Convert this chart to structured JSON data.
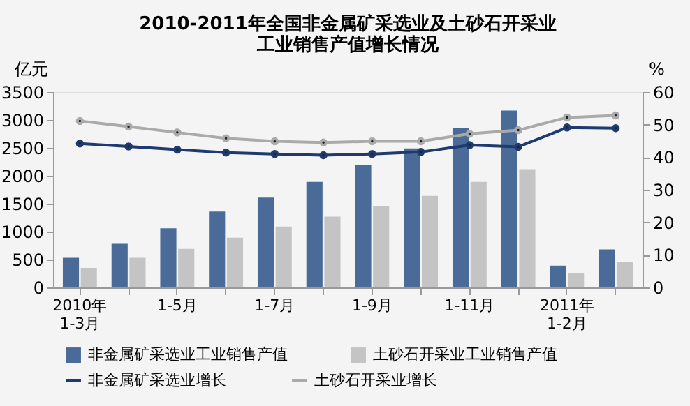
{
  "chart_data": {
    "type": "bar",
    "title": "2010-2011年全国非金属矿采选业及土砂石开采业工业销售产值增长情况",
    "ylabel": "亿元",
    "y2label": "%",
    "categories": [
      "2010年\n1-3月",
      null,
      "1-5月",
      null,
      "1-7月",
      null,
      "1-9月",
      null,
      "1-11月",
      null,
      "2011年\n1-2月",
      null
    ],
    "series": [
      {
        "name": "非金属矿采选业工业销售产值",
        "color": "#4a6a98",
        "values": [
          530,
          780,
          1060,
          1360,
          1610,
          1890,
          2190,
          2490,
          2850,
          3170,
          390,
          680
        ]
      },
      {
        "name": "土砂石开采业工业销售产值",
        "color": "#c4c4c4",
        "values": [
          350,
          530,
          690,
          890,
          1090,
          1270,
          1460,
          1640,
          1890,
          2120,
          250,
          450
        ]
      },
      {
        "name": "非金属矿采选业增长",
        "type": "line",
        "axis": "y2",
        "color": "#1f3a6e",
        "values": [
          44.2,
          43.3,
          42.3,
          41.4,
          41.0,
          40.6,
          41.0,
          41.6,
          43.7,
          43.2,
          49.1,
          48.9
        ]
      },
      {
        "name": "土砂石开采业增长",
        "type": "line",
        "axis": "y2",
        "color": "#aaaaaa",
        "values": [
          51.1,
          49.4,
          47.6,
          45.8,
          44.9,
          44.5,
          44.9,
          44.9,
          47.2,
          48.3,
          52.2,
          52.8
        ]
      }
    ],
    "ylim": [
      0,
      3500
    ],
    "yticks": [
      0,
      500,
      1000,
      1500,
      2000,
      2500,
      3000,
      3500
    ],
    "y2lim": [
      0,
      60
    ],
    "y2ticks": [
      0,
      10,
      20,
      30,
      40,
      50,
      60
    ],
    "grid": false,
    "legend": "bottom",
    "marker": "circle",
    "line_style": "solid"
  }
}
